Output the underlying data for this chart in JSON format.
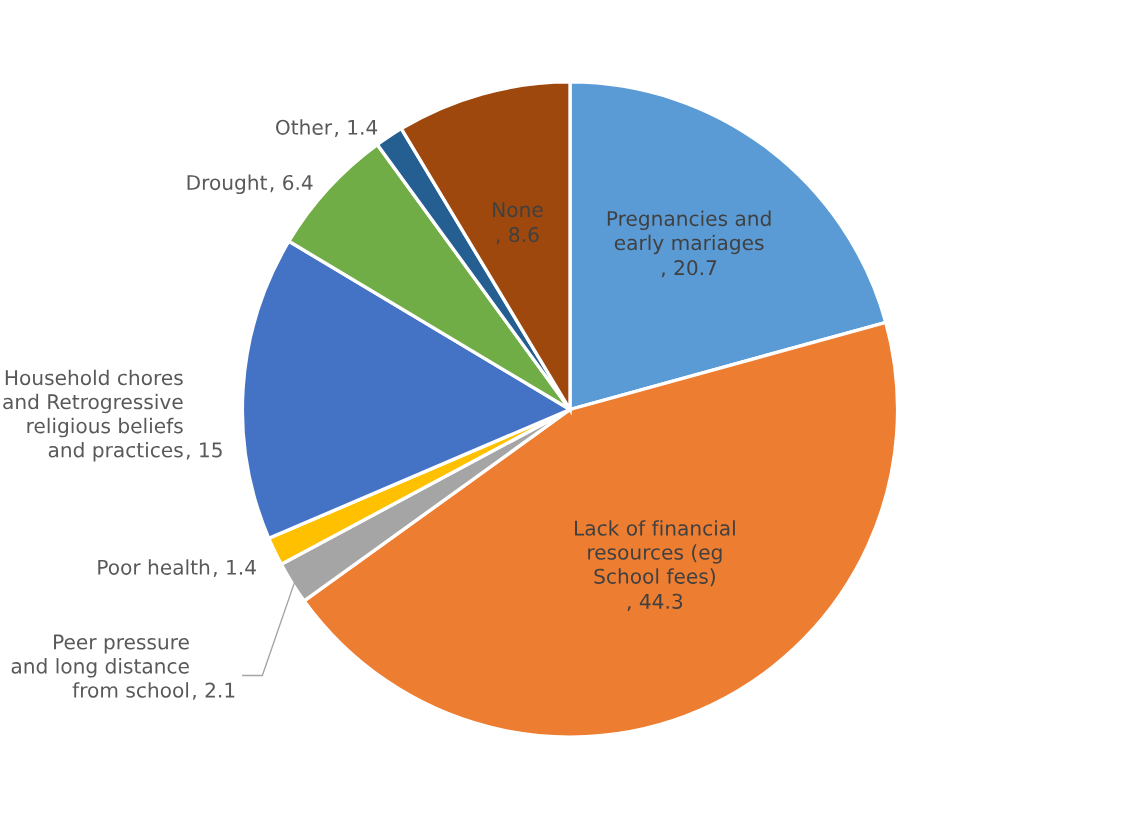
{
  "chart_data": {
    "type": "pie",
    "categories": [
      "Pregnancies and\nearly mariages",
      "Lack of financial\nresources (eg\nSchool fees)",
      "Peer pressure\nand long distance\nfrom school",
      "Poor health",
      "Household chores\nand Retrogressive\nreligious beliefs\nand practices",
      "Drought",
      "Other",
      "None"
    ],
    "values": [
      20.7,
      44.3,
      2.1,
      1.4,
      15,
      6.4,
      1.4,
      8.6
    ],
    "colors": [
      "#5b9bd5",
      "#ed7d31",
      "#a5a5a5",
      "#ffc000",
      "#4472c4",
      "#70ad47",
      "#255e91",
      "#9e480e"
    ],
    "value_labels": [
      ", 20.7",
      ", 44.3",
      ", 2.1",
      ", 1.4",
      ", 15",
      ", 6.4",
      ", 1.4",
      ", 8.6"
    ]
  }
}
